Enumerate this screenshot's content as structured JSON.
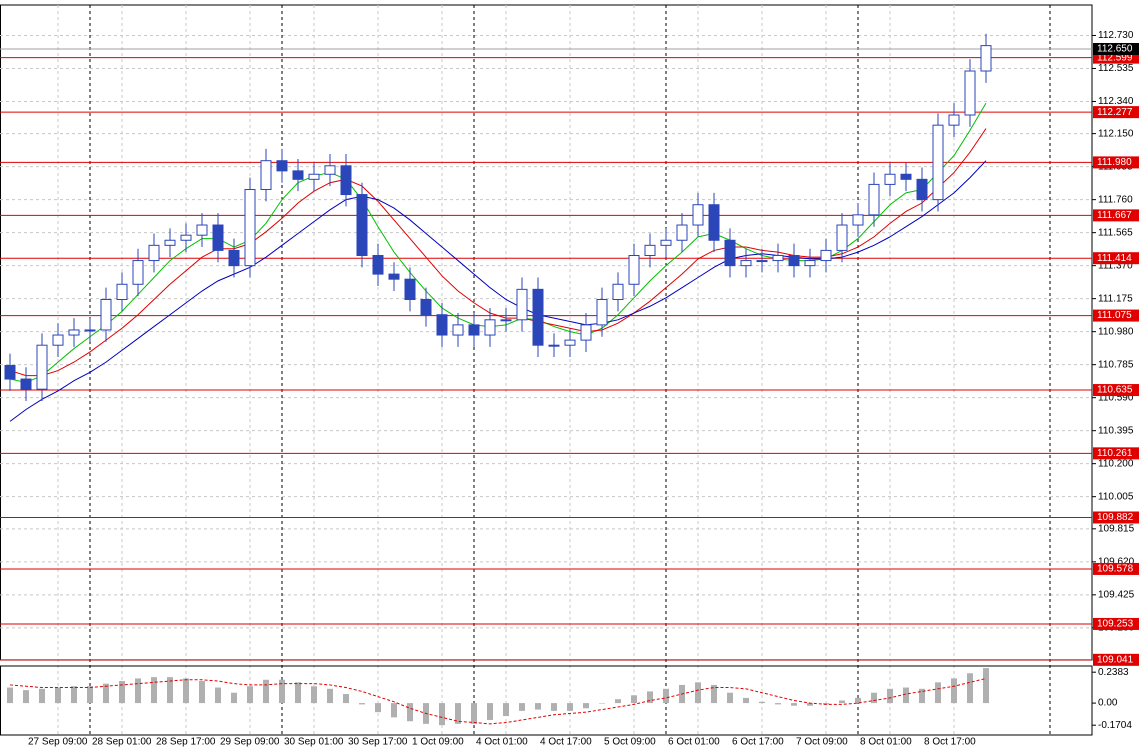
{
  "chart_data": [
    {
      "type": "candlestick",
      "categories": [
        null,
        "27 Sep 09:00",
        null,
        null,
        null,
        "28 Sep 01:00",
        null,
        null,
        null,
        "28 Sep 17:00",
        null,
        null,
        null,
        "29 Sep 09:00",
        null,
        null,
        null,
        "30 Sep 01:00",
        null,
        null,
        null,
        "30 Sep 17:00",
        null,
        null,
        null,
        "1 Oct 09:00",
        null,
        null,
        null,
        "4 Oct 01:00",
        null,
        null,
        null,
        "4 Oct 17:00",
        null,
        null,
        null,
        "5 Oct 09:00",
        null,
        null,
        null,
        "6 Oct 01:00",
        null,
        null,
        null,
        "6 Oct 17:00",
        null,
        null,
        null,
        "7 Oct 09:00",
        null,
        null,
        null,
        "8 Oct 01:00",
        null,
        null,
        null,
        "8 Oct 17:00",
        null,
        null,
        null,
        null
      ],
      "color": "#2b46b8",
      "open": [
        110.78,
        110.7,
        110.64,
        110.9,
        110.96,
        110.99,
        110.99,
        111.17,
        111.26,
        111.4,
        111.49,
        111.52,
        111.55,
        111.61,
        111.46,
        111.37,
        111.82,
        111.99,
        111.93,
        111.88,
        111.91,
        111.96,
        111.79,
        111.43,
        111.32,
        111.29,
        111.17,
        111.08,
        110.96,
        111.02,
        110.96,
        111.05,
        111.05,
        111.23,
        110.9,
        110.9,
        110.93,
        111.02,
        111.17,
        111.26,
        111.43,
        111.49,
        111.52,
        111.61,
        111.73,
        111.52,
        111.37,
        111.4,
        111.4,
        111.43,
        111.37,
        111.4,
        111.46,
        111.61,
        111.67,
        111.85,
        111.91,
        111.88,
        111.76,
        112.2,
        112.26,
        112.52
      ],
      "high": [
        110.85,
        110.77,
        110.97,
        111.03,
        111.06,
        111.06,
        111.24,
        111.33,
        111.47,
        111.56,
        111.59,
        111.62,
        111.68,
        111.68,
        111.53,
        111.89,
        112.06,
        112.06,
        112.0,
        111.98,
        112.03,
        112.03,
        111.86,
        111.5,
        111.39,
        111.36,
        111.24,
        111.15,
        111.09,
        111.09,
        111.12,
        111.12,
        111.3,
        111.3,
        110.97,
        111.0,
        111.09,
        111.24,
        111.33,
        111.5,
        111.56,
        111.59,
        111.68,
        111.8,
        111.8,
        111.59,
        111.47,
        111.47,
        111.5,
        111.5,
        111.47,
        111.53,
        111.68,
        111.74,
        111.92,
        111.98,
        111.98,
        111.95,
        112.27,
        112.33,
        112.59,
        112.74
      ],
      "low": [
        110.63,
        110.57,
        110.57,
        110.83,
        110.89,
        110.92,
        110.92,
        111.1,
        111.19,
        111.33,
        111.42,
        111.45,
        111.48,
        111.39,
        111.3,
        111.3,
        111.75,
        111.86,
        111.81,
        111.81,
        111.84,
        111.72,
        111.36,
        111.25,
        111.22,
        111.1,
        111.01,
        110.89,
        110.89,
        110.89,
        110.89,
        110.98,
        110.98,
        110.83,
        110.83,
        110.83,
        110.86,
        110.95,
        111.1,
        111.19,
        111.36,
        111.42,
        111.45,
        111.54,
        111.45,
        111.3,
        111.3,
        111.33,
        111.33,
        111.3,
        111.3,
        111.33,
        111.39,
        111.54,
        111.6,
        111.78,
        111.81,
        111.69,
        111.69,
        112.13,
        112.19,
        112.45
      ],
      "close": [
        110.7,
        110.64,
        110.9,
        110.96,
        110.99,
        110.99,
        111.17,
        111.26,
        111.4,
        111.49,
        111.52,
        111.55,
        111.61,
        111.46,
        111.37,
        111.82,
        111.99,
        111.93,
        111.88,
        111.91,
        111.96,
        111.79,
        111.43,
        111.32,
        111.29,
        111.17,
        111.08,
        110.96,
        111.02,
        110.96,
        111.05,
        111.05,
        111.23,
        110.9,
        110.9,
        110.93,
        111.02,
        111.17,
        111.26,
        111.43,
        111.49,
        111.52,
        111.61,
        111.73,
        111.52,
        111.37,
        111.4,
        111.4,
        111.43,
        111.37,
        111.4,
        111.46,
        111.61,
        111.67,
        111.85,
        111.91,
        111.88,
        111.76,
        112.2,
        112.26,
        112.52,
        112.67
      ],
      "series": [
        {
          "color": "#00c000",
          "values": [
            110.7,
            110.68,
            110.72,
            110.8,
            110.88,
            110.95,
            111.02,
            111.1,
            111.2,
            111.3,
            111.4,
            111.47,
            111.53,
            111.53,
            111.48,
            111.52,
            111.62,
            111.76,
            111.86,
            111.9,
            111.92,
            111.88,
            111.76,
            111.6,
            111.45,
            111.33,
            111.22,
            111.12,
            111.06,
            111.02,
            111.01,
            111.02,
            111.06,
            111.05,
            111.01,
            110.98,
            110.96,
            111.0,
            111.08,
            111.18,
            111.28,
            111.37,
            111.45,
            111.54,
            111.56,
            111.52,
            111.47,
            111.43,
            111.41,
            111.4,
            111.4,
            111.41,
            111.46,
            111.53,
            111.63,
            111.73,
            111.8,
            111.82,
            111.92,
            112.02,
            112.17,
            112.33
          ]
        },
        {
          "color": "#e00000",
          "values": [
            110.75,
            110.72,
            110.72,
            110.75,
            110.8,
            110.86,
            110.93,
            111.0,
            111.08,
            111.17,
            111.26,
            111.34,
            111.42,
            111.47,
            111.47,
            111.5,
            111.57,
            111.65,
            111.74,
            111.81,
            111.86,
            111.88,
            111.84,
            111.75,
            111.64,
            111.53,
            111.42,
            111.31,
            111.22,
            111.15,
            111.09,
            111.06,
            111.06,
            111.04,
            111.02,
            111.0,
            110.98,
            110.99,
            111.03,
            111.09,
            111.16,
            111.24,
            111.32,
            111.41,
            111.46,
            111.48,
            111.48,
            111.46,
            111.45,
            111.43,
            111.42,
            111.42,
            111.44,
            111.48,
            111.54,
            111.62,
            111.69,
            111.74,
            111.83,
            111.92,
            112.04,
            112.18
          ]
        },
        {
          "color": "#0000c0",
          "values": [
            110.45,
            110.52,
            110.58,
            110.63,
            110.69,
            110.74,
            110.8,
            110.87,
            110.94,
            111.01,
            111.08,
            111.15,
            111.22,
            111.28,
            111.32,
            111.36,
            111.42,
            111.49,
            111.56,
            111.63,
            111.7,
            111.76,
            111.78,
            111.76,
            111.71,
            111.64,
            111.56,
            111.48,
            111.4,
            111.32,
            111.24,
            111.17,
            111.12,
            111.08,
            111.06,
            111.04,
            111.02,
            111.03,
            111.05,
            111.09,
            111.13,
            111.18,
            111.24,
            111.3,
            111.36,
            111.41,
            111.43,
            111.44,
            111.43,
            111.42,
            111.41,
            111.41,
            111.42,
            111.45,
            111.49,
            111.54,
            111.6,
            111.66,
            111.73,
            111.8,
            111.89,
            111.99
          ]
        }
      ],
      "ylim": [
        109.04,
        112.91
      ],
      "yticks": [
        {
          "value": 112.73,
          "label": "112.730"
        },
        112.535,
        {
          "value": 112.34,
          "label": "112.340"
        },
        {
          "value": 112.15,
          "label": "112.150"
        },
        111.955,
        {
          "value": 111.76,
          "label": "111.760"
        },
        111.565,
        {
          "value": 111.37,
          "label": "111.370"
        },
        111.175,
        {
          "value": 110.98,
          "label": "110.980"
        },
        110.785,
        {
          "value": 110.59,
          "label": "110.590"
        },
        110.395,
        {
          "value": 110.2,
          "label": "110.200"
        },
        110.005,
        109.815,
        {
          "value": 109.62,
          "label": "109.620"
        },
        109.425,
        {
          "value": 109.23,
          "label": "109.230"
        }
      ],
      "levels": [
        112.599,
        112.277,
        {
          "value": 111.98,
          "label": "111.980"
        },
        111.667,
        111.414,
        111.075,
        110.635,
        110.261,
        109.882,
        109.578,
        109.253,
        109.041
      ],
      "level_color": "#e00000",
      "current": {
        "value": 112.65,
        "label": "112.650"
      },
      "grid": true
    },
    {
      "type": "bar",
      "color": "#b0b0b0",
      "values": [
        0.12,
        0.1,
        0.11,
        0.12,
        0.13,
        0.13,
        0.15,
        0.17,
        0.19,
        0.2,
        0.2,
        0.19,
        0.17,
        0.12,
        0.08,
        0.13,
        0.18,
        0.18,
        0.16,
        0.13,
        0.11,
        0.07,
        -0.01,
        -0.07,
        -0.11,
        -0.14,
        -0.16,
        -0.17,
        -0.16,
        -0.16,
        -0.13,
        -0.1,
        -0.06,
        -0.05,
        -0.06,
        -0.06,
        -0.04,
        0.0,
        0.03,
        0.06,
        0.09,
        0.11,
        0.14,
        0.16,
        0.14,
        0.08,
        0.04,
        0.01,
        -0.01,
        -0.02,
        -0.02,
        -0.01,
        0.02,
        0.04,
        0.08,
        0.11,
        0.12,
        0.11,
        0.16,
        0.19,
        0.23,
        0.27
      ],
      "signal": {
        "color": "#e00000",
        "values": [
          0.14,
          0.13,
          0.12,
          0.12,
          0.12,
          0.12,
          0.13,
          0.14,
          0.15,
          0.16,
          0.17,
          0.18,
          0.18,
          0.17,
          0.15,
          0.14,
          0.14,
          0.15,
          0.15,
          0.15,
          0.14,
          0.12,
          0.09,
          0.05,
          0.01,
          -0.04,
          -0.08,
          -0.11,
          -0.14,
          -0.15,
          -0.16,
          -0.15,
          -0.13,
          -0.11,
          -0.09,
          -0.08,
          -0.07,
          -0.05,
          -0.03,
          -0.01,
          0.02,
          0.04,
          0.07,
          0.1,
          0.12,
          0.12,
          0.11,
          0.08,
          0.05,
          0.02,
          0.0,
          -0.01,
          -0.01,
          0.0,
          0.02,
          0.04,
          0.07,
          0.09,
          0.11,
          0.13,
          0.16,
          0.19
        ]
      },
      "ylim": [
        -0.246,
        0.286
      ],
      "yticks": [
        0.2383,
        {
          "value": 0,
          "label": "0.00"
        },
        -0.1704
      ]
    }
  ]
}
